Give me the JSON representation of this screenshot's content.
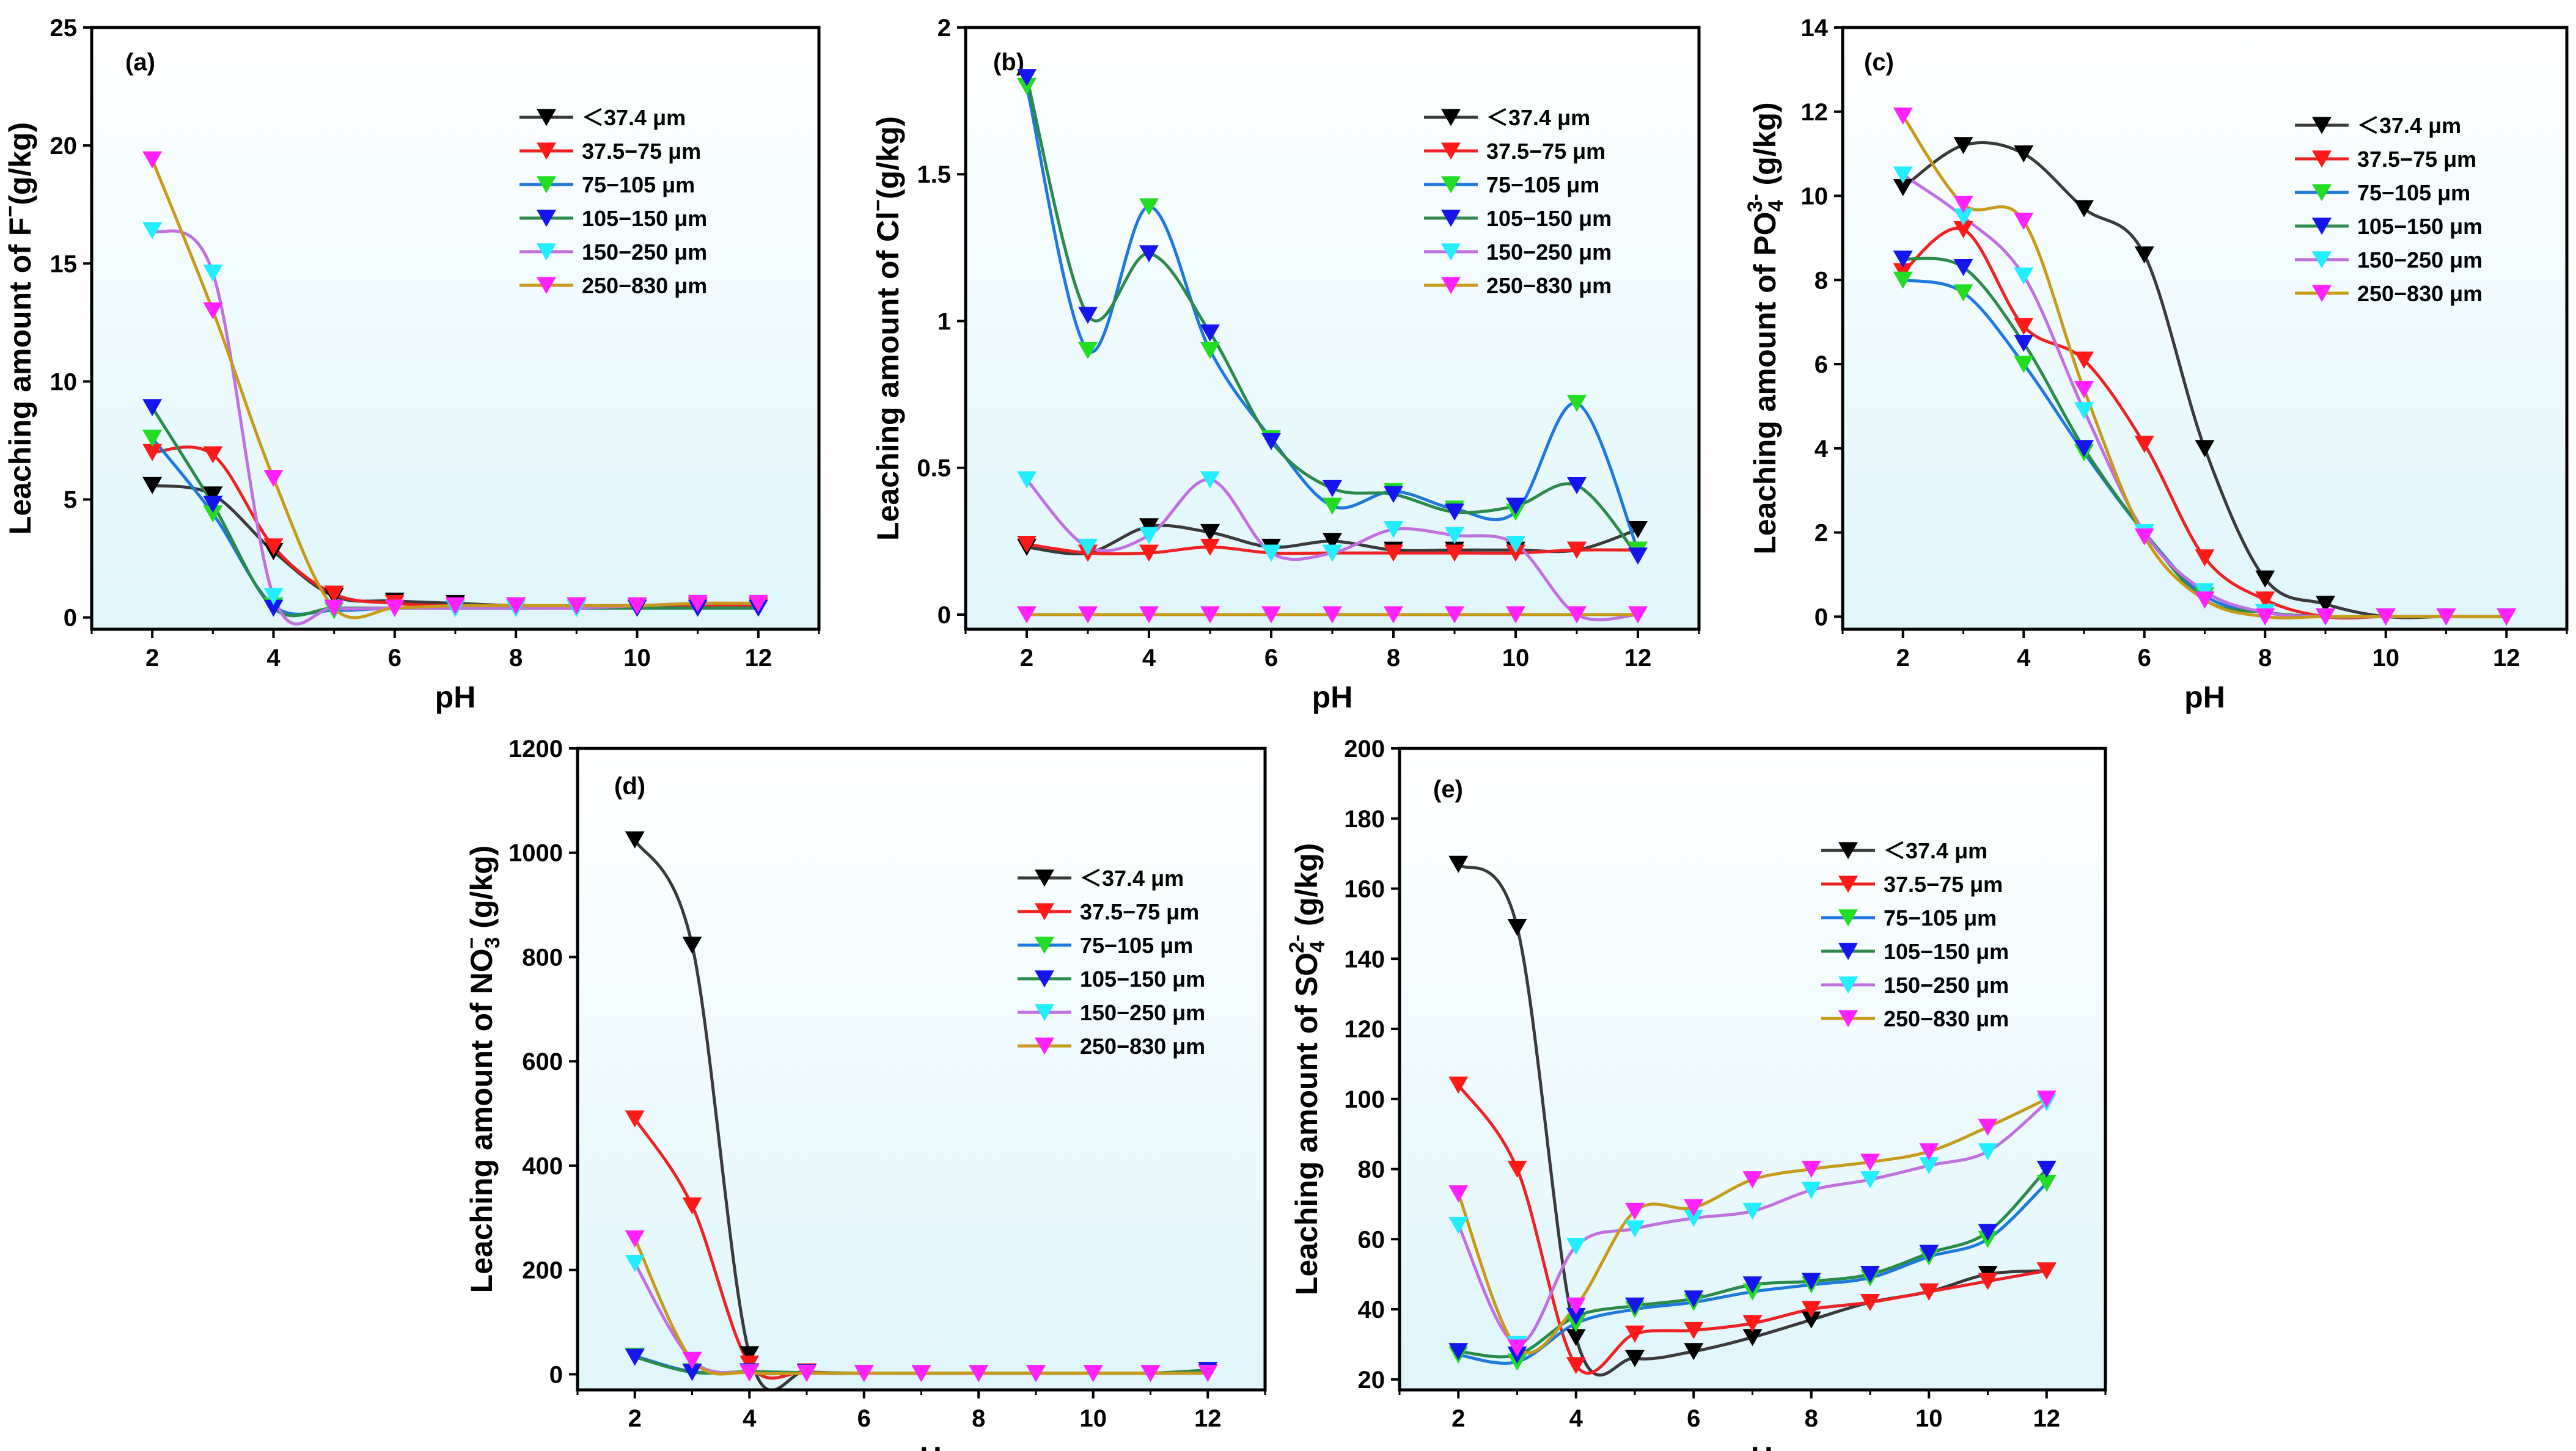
{
  "figure": {
    "type": "multi-panel line/scatter chart"
  },
  "colors": {
    "background_top": "#ffffff",
    "background_bottom": "#dff6fb",
    "axis": "#000000",
    "series": [
      "#000000",
      "#ff1a1a",
      "#22dd22",
      "#1515ee",
      "#22eeff",
      "#ff22ff"
    ],
    "lines": [
      "#3a3a3a",
      "#ee2222",
      "#1e78dd",
      "#2a8a4a",
      "#c070e0",
      "#c89a1a"
    ]
  },
  "chart_data": [
    {
      "id": "a",
      "type": "line",
      "panel_label": "(a)",
      "xlabel": "pH",
      "ylabel_main": "Leaching amount of F",
      "ylabel_sup": "−",
      "ylabel_sub": "",
      "ylabel_tail": "(g/kg)",
      "xlim": [
        1,
        13
      ],
      "ylim": [
        -0.5,
        25
      ],
      "xticks": [
        2,
        4,
        6,
        8,
        10,
        12
      ],
      "yticks": [
        0,
        5,
        10,
        15,
        20,
        25
      ],
      "x": [
        2,
        3,
        4,
        5,
        6,
        7,
        8,
        9,
        10,
        11,
        12
      ],
      "legend_position": "upper-right",
      "series": [
        {
          "name": "＜37.4  μm",
          "values": [
            5.6,
            5.2,
            2.8,
            0.9,
            0.7,
            0.6,
            0.5,
            0.5,
            0.5,
            0.5,
            0.5
          ]
        },
        {
          "name": "37.5−75  μm",
          "values": [
            7.0,
            6.9,
            3.0,
            1.0,
            0.6,
            0.5,
            0.5,
            0.5,
            0.5,
            0.5,
            0.5
          ]
        },
        {
          "name": "75−105  μm",
          "values": [
            7.6,
            4.4,
            0.5,
            0.3,
            0.4,
            0.4,
            0.4,
            0.4,
            0.4,
            0.4,
            0.4
          ]
        },
        {
          "name": "105−150  μm",
          "values": [
            8.9,
            4.8,
            0.4,
            0.4,
            0.4,
            0.4,
            0.4,
            0.4,
            0.4,
            0.4,
            0.4
          ]
        },
        {
          "name": "150−250  μm",
          "values": [
            16.4,
            14.6,
            0.9,
            0.4,
            0.4,
            0.4,
            0.4,
            0.4,
            0.5,
            0.6,
            0.6
          ]
        },
        {
          "name": "250−830  μm",
          "values": [
            19.4,
            13.0,
            5.9,
            0.4,
            0.4,
            0.5,
            0.5,
            0.5,
            0.5,
            0.6,
            0.6
          ]
        }
      ]
    },
    {
      "id": "b",
      "type": "line",
      "panel_label": "(b)",
      "xlabel": "pH",
      "ylabel_main": "Leaching amount of Cl",
      "ylabel_sup": "−",
      "ylabel_sub": "",
      "ylabel_tail": "(g/kg)",
      "xlim": [
        1,
        13
      ],
      "ylim": [
        -0.05,
        2.0
      ],
      "xticks": [
        2,
        4,
        6,
        8,
        10,
        12
      ],
      "yticks": [
        0.0,
        0.5,
        1.0,
        1.5,
        2.0
      ],
      "x": [
        2,
        3,
        4,
        5,
        6,
        7,
        8,
        9,
        10,
        11,
        12
      ],
      "legend_position": "upper-right",
      "series": [
        {
          "name": "＜37.4  μm",
          "values": [
            0.23,
            0.21,
            0.3,
            0.28,
            0.23,
            0.25,
            0.22,
            0.22,
            0.22,
            0.22,
            0.29
          ]
        },
        {
          "name": "37.5−75  μm",
          "values": [
            0.24,
            0.21,
            0.21,
            0.23,
            0.21,
            0.21,
            0.21,
            0.21,
            0.21,
            0.22,
            0.22
          ]
        },
        {
          "name": "75−105  μm",
          "values": [
            1.8,
            0.9,
            1.39,
            0.9,
            0.6,
            0.37,
            0.42,
            0.36,
            0.35,
            0.72,
            0.22
          ]
        },
        {
          "name": "105−150  μm",
          "values": [
            1.83,
            1.02,
            1.23,
            0.96,
            0.59,
            0.43,
            0.41,
            0.35,
            0.37,
            0.44,
            0.2
          ]
        },
        {
          "name": "150−250  μm",
          "values": [
            0.46,
            0.23,
            0.27,
            0.46,
            0.21,
            0.21,
            0.29,
            0.27,
            0.24,
            0.0,
            0.0
          ]
        },
        {
          "name": "250−830  μm",
          "values": [
            0.0,
            0.0,
            0.0,
            0.0,
            0.0,
            0.0,
            0.0,
            0.0,
            0.0,
            0.0,
            0.0
          ]
        }
      ]
    },
    {
      "id": "c",
      "type": "line",
      "panel_label": "(c)",
      "xlabel": "pH",
      "ylabel_main": "Leaching amount of PO",
      "ylabel_sup": "3-",
      "ylabel_sub": "4",
      "ylabel_tail": " (g/kg)",
      "xlim": [
        1,
        13
      ],
      "ylim": [
        -0.3,
        14
      ],
      "xticks": [
        2,
        4,
        6,
        8,
        10,
        12
      ],
      "yticks": [
        0,
        2,
        4,
        6,
        8,
        10,
        12,
        14
      ],
      "x": [
        2,
        3,
        4,
        5,
        6,
        7,
        8,
        9,
        10,
        11,
        12
      ],
      "legend_position": "upper-right",
      "series": [
        {
          "name": "＜37.4  μm",
          "values": [
            10.2,
            11.2,
            11.0,
            9.7,
            8.6,
            4.0,
            0.9,
            0.3,
            0.0,
            0.0,
            0.0
          ]
        },
        {
          "name": "37.5−75  μm",
          "values": [
            8.2,
            9.2,
            6.9,
            6.1,
            4.1,
            1.4,
            0.4,
            0.0,
            0.0,
            0.0,
            0.0
          ]
        },
        {
          "name": "75−105  μm",
          "values": [
            8.0,
            7.7,
            6.0,
            3.9,
            2.0,
            0.5,
            0.1,
            0.0,
            0.0,
            0.0,
            0.0
          ]
        },
        {
          "name": "105−150  μm",
          "values": [
            8.5,
            8.3,
            6.5,
            4.0,
            2.0,
            0.4,
            0.1,
            0.0,
            0.0,
            0.0,
            0.0
          ]
        },
        {
          "name": "150−250  μm",
          "values": [
            10.5,
            9.5,
            8.1,
            4.9,
            2.0,
            0.6,
            0.1,
            0.0,
            0.0,
            0.0,
            0.0
          ]
        },
        {
          "name": "250−830  μm",
          "values": [
            11.9,
            9.8,
            9.4,
            5.4,
            1.9,
            0.4,
            0.0,
            0.0,
            0.0,
            0.0,
            0.0
          ]
        }
      ]
    },
    {
      "id": "d",
      "type": "line",
      "panel_label": "(d)",
      "xlabel": "pH",
      "ylabel_main": "Leaching amount of NO",
      "ylabel_sup": "−",
      "ylabel_sub": "3",
      "ylabel_tail": " (g/kg)",
      "xlim": [
        1,
        13
      ],
      "ylim": [
        -30,
        1200
      ],
      "xticks": [
        2,
        4,
        6,
        8,
        10,
        12
      ],
      "yticks": [
        0,
        200,
        400,
        600,
        800,
        1000,
        1200
      ],
      "x": [
        2,
        3,
        4,
        5,
        6,
        7,
        8,
        9,
        10,
        11,
        12
      ],
      "legend_position": "upper-right",
      "series": [
        {
          "name": "＜37.4  μm",
          "values": [
            1025,
            823,
            38,
            5,
            2,
            2,
            2,
            2,
            2,
            2,
            3
          ]
        },
        {
          "name": "37.5−75  μm",
          "values": [
            490,
            323,
            20,
            5,
            2,
            2,
            2,
            2,
            2,
            2,
            3
          ]
        },
        {
          "name": "75−105  μm",
          "values": [
            35,
            5,
            4,
            3,
            2,
            2,
            2,
            2,
            2,
            2,
            8
          ]
        },
        {
          "name": "105−150  μm",
          "values": [
            33,
            4,
            5,
            3,
            2,
            2,
            2,
            2,
            2,
            2,
            8
          ]
        },
        {
          "name": "150−250  μm",
          "values": [
            213,
            27,
            3,
            2,
            2,
            2,
            2,
            2,
            2,
            2,
            2
          ]
        },
        {
          "name": "250−830  μm",
          "values": [
            260,
            27,
            3,
            2,
            2,
            2,
            2,
            2,
            2,
            2,
            2
          ]
        }
      ]
    },
    {
      "id": "e",
      "type": "line",
      "panel_label": "(e)",
      "xlabel": "pH",
      "ylabel_main": "Leaching amount of SO",
      "ylabel_sup": "2-",
      "ylabel_sub": "4",
      "ylabel_tail": " (g/kg)",
      "xlim": [
        1,
        13
      ],
      "ylim": [
        17,
        200
      ],
      "xticks": [
        2,
        4,
        6,
        8,
        10,
        12
      ],
      "yticks": [
        20,
        40,
        60,
        80,
        100,
        120,
        140,
        160,
        180,
        200
      ],
      "x": [
        2,
        3,
        4,
        5,
        6,
        7,
        8,
        9,
        10,
        11,
        12
      ],
      "legend_position": "upper-right",
      "series": [
        {
          "name": "＜37.4  μm",
          "values": [
            167,
            149,
            32,
            26,
            28,
            32,
            37,
            42,
            45,
            50,
            51
          ]
        },
        {
          "name": "37.5−75  μm",
          "values": [
            104,
            80,
            24,
            33,
            34,
            36,
            40,
            42,
            45,
            48,
            51
          ]
        },
        {
          "name": "75−105  μm",
          "values": [
            27,
            25,
            36,
            40,
            42,
            45,
            47,
            49,
            55,
            60,
            76
          ]
        },
        {
          "name": "105−150  μm",
          "values": [
            28,
            27,
            38,
            41,
            43,
            47,
            48,
            50,
            56,
            62,
            80
          ]
        },
        {
          "name": "150−250  μm",
          "values": [
            64,
            30,
            58,
            63,
            66,
            68,
            74,
            77,
            81,
            85,
            99
          ]
        },
        {
          "name": "250−830  μm",
          "values": [
            73,
            29,
            41,
            68,
            69,
            77,
            80,
            82,
            85,
            92,
            100
          ]
        }
      ]
    }
  ]
}
